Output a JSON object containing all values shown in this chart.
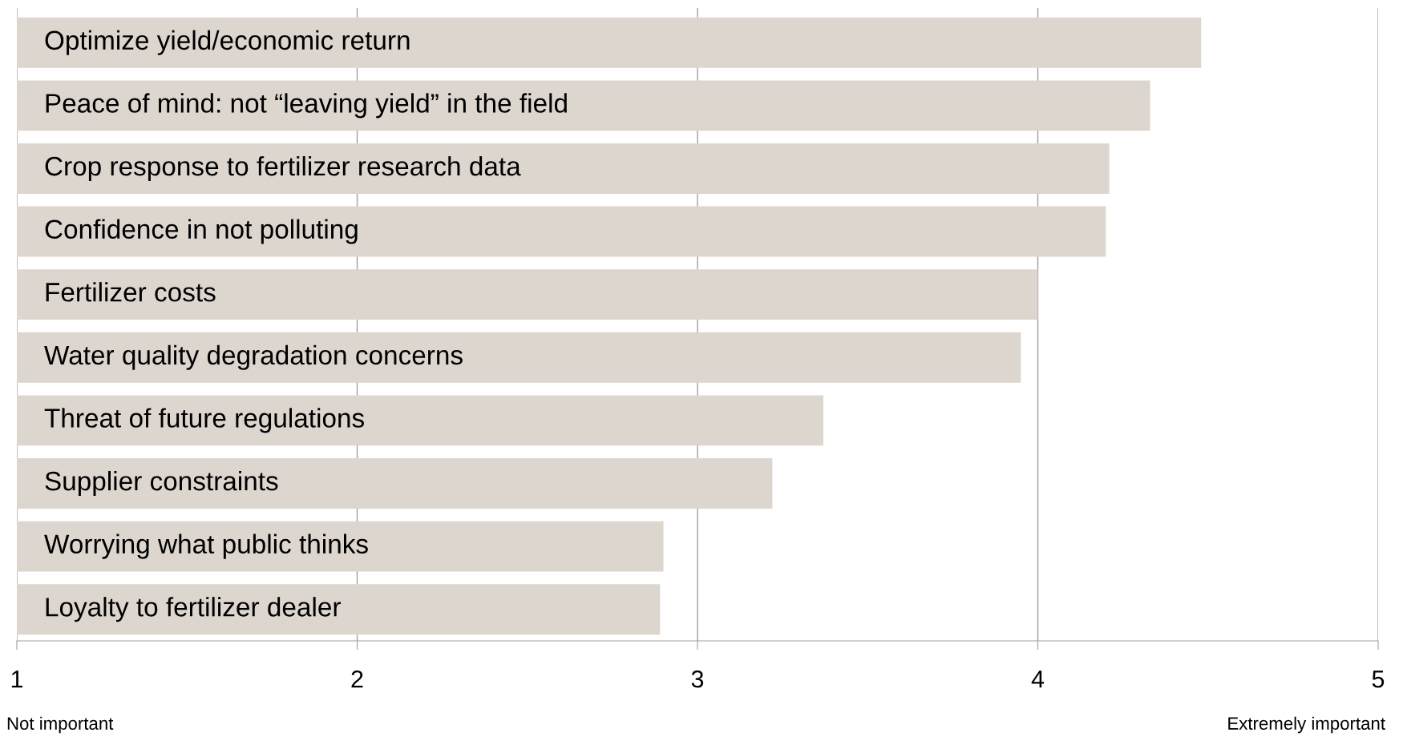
{
  "chart_data": {
    "type": "bar",
    "orientation": "horizontal",
    "categories": [
      "Optimize yield/economic return",
      "Peace of mind: not “leaving yield” in the field",
      "Crop response to fertilizer research data",
      "Confidence in not polluting",
      "Fertilizer costs",
      "Water quality degradation concerns",
      "Threat of future regulations",
      "Supplier constraints",
      "Worrying what public thinks",
      "Loyalty to fertilizer dealer"
    ],
    "values": [
      4.48,
      4.33,
      4.21,
      4.2,
      4.0,
      3.95,
      3.37,
      3.22,
      2.9,
      2.89
    ],
    "color": "#ddd6cf",
    "xlim": [
      1,
      5
    ],
    "xticks": [
      1,
      2,
      3,
      4,
      5
    ],
    "grid": "x",
    "annotations": [
      "Not important",
      "Extremely important"
    ]
  }
}
